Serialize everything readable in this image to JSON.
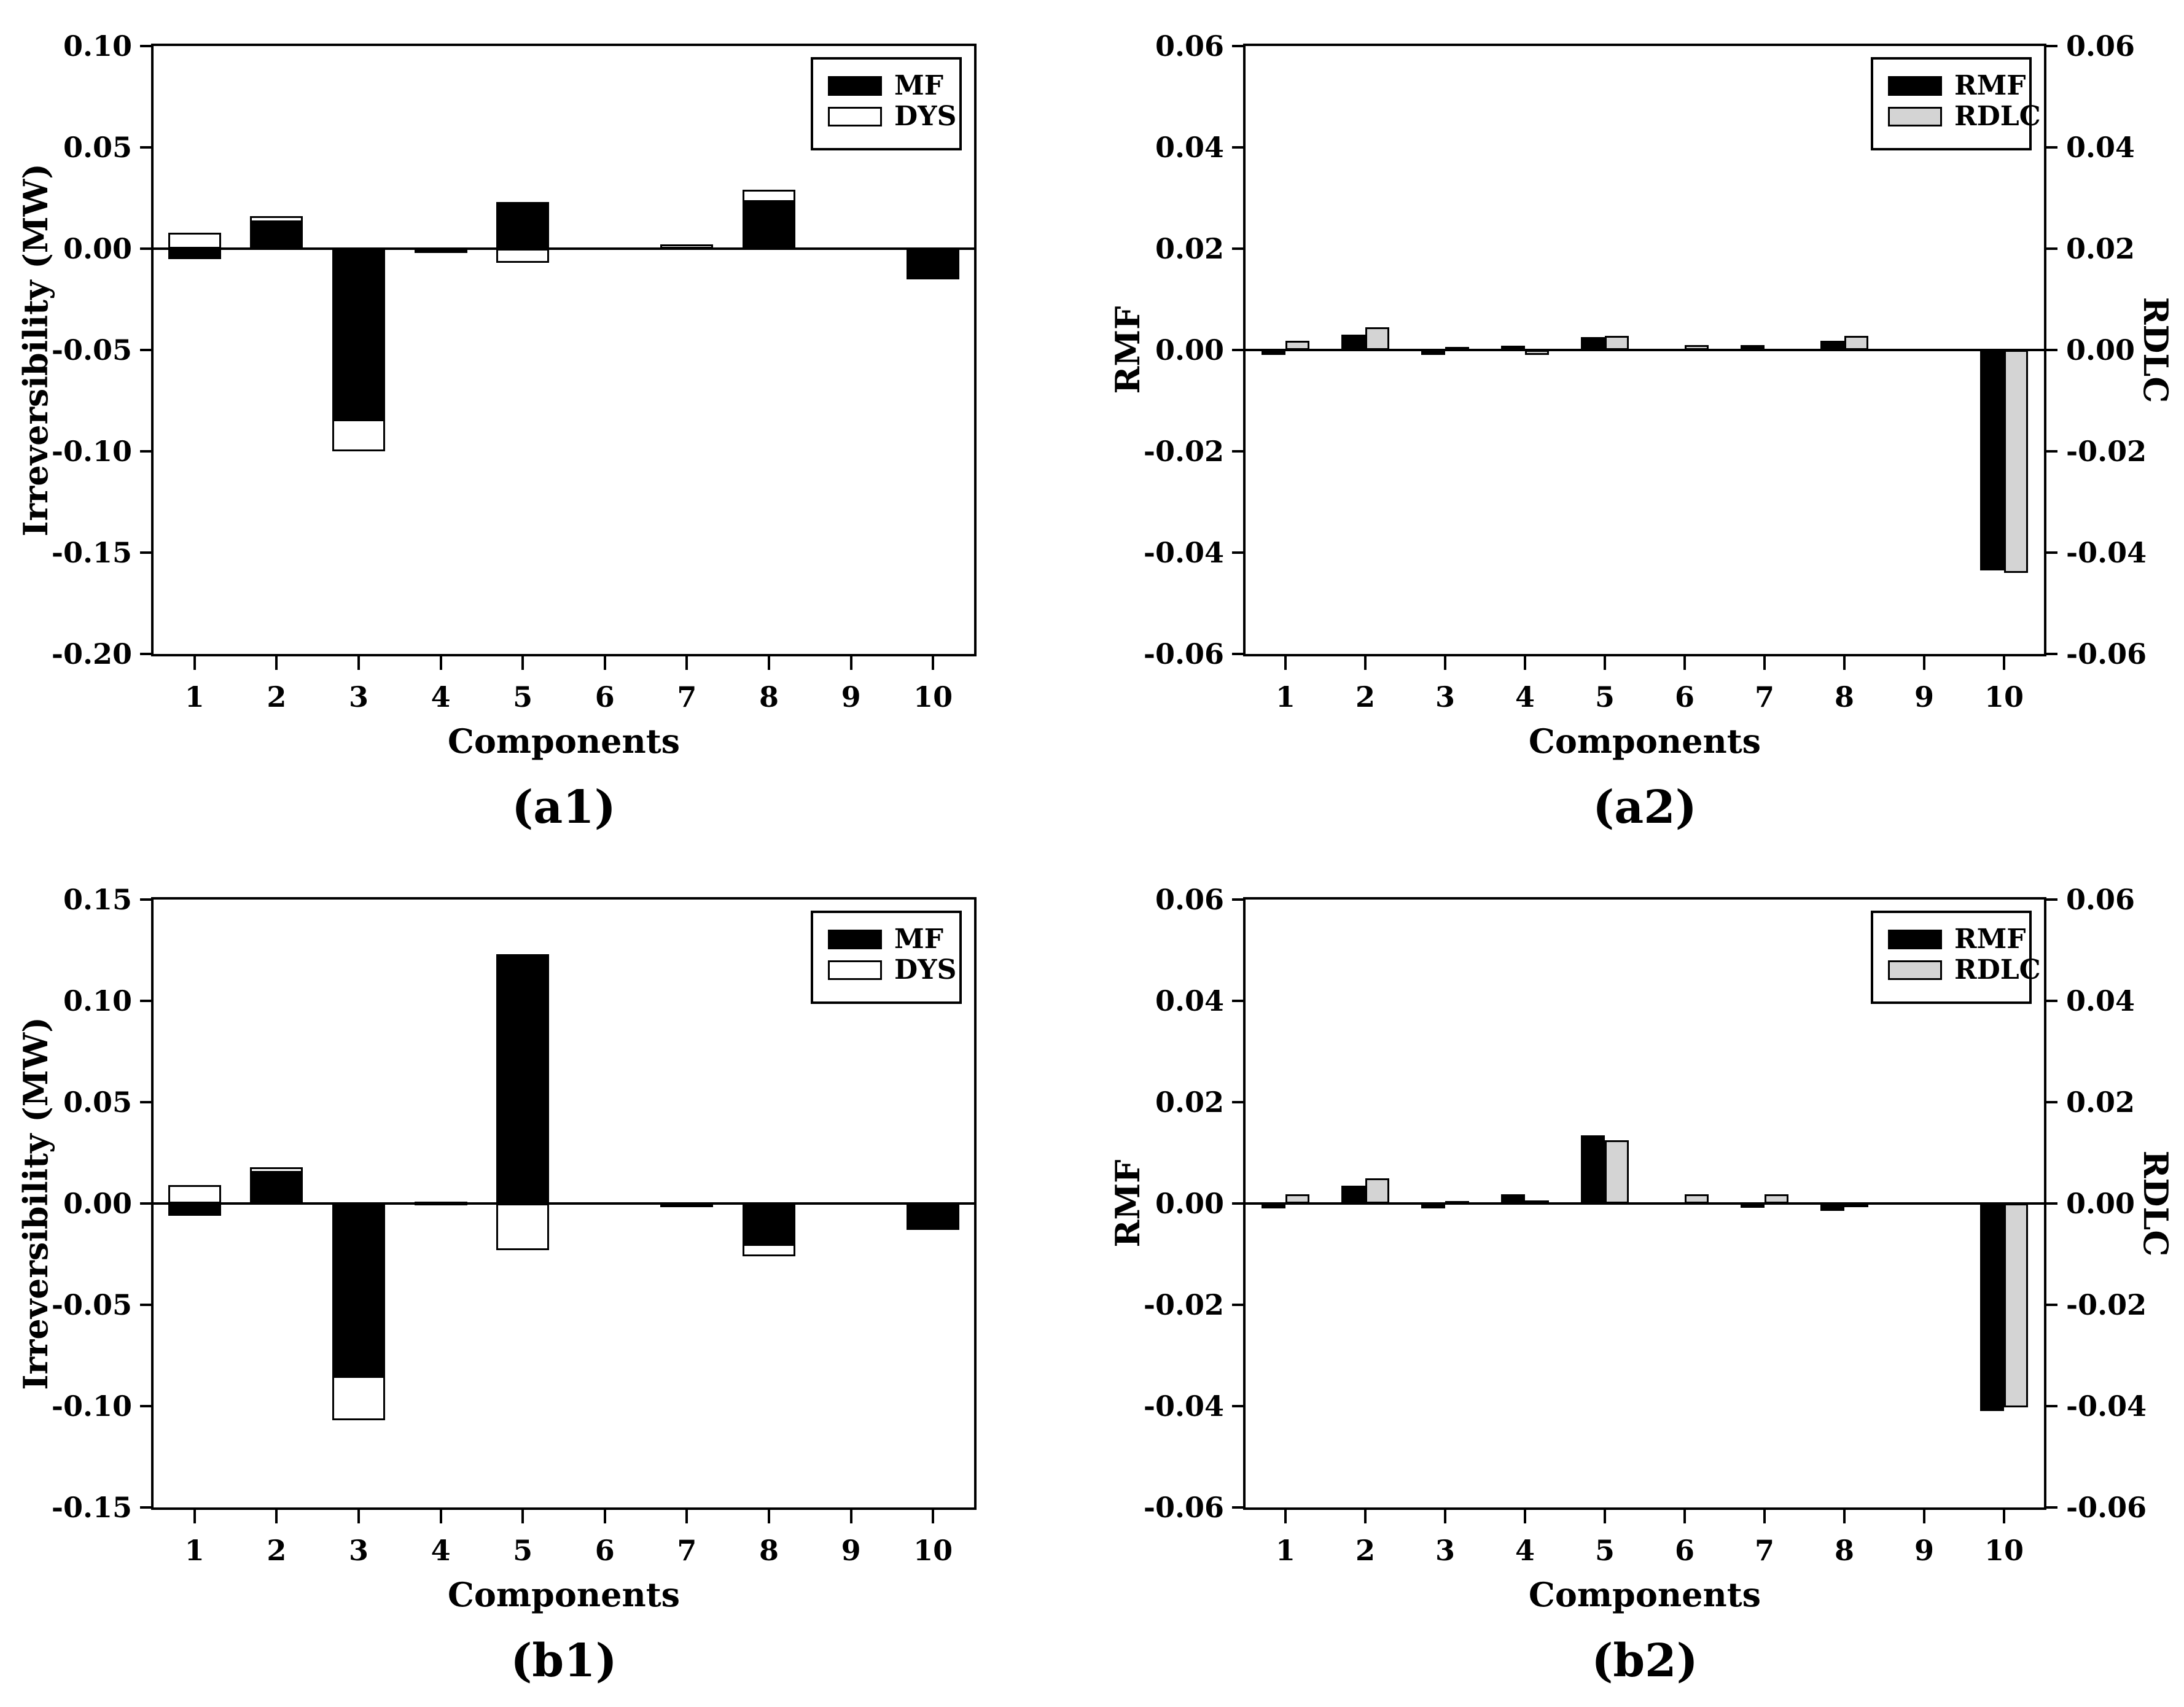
{
  "figure": {
    "background": "#ffffff",
    "caption_labels": [
      "(a1)",
      "(a2)",
      "(b1)",
      "(b2)"
    ]
  },
  "colors": {
    "black": "#000000",
    "white": "#ffffff",
    "light_gray": "#d4d4d4",
    "axis": "#000000",
    "background": "#ffffff"
  },
  "chart_data": [
    {
      "id": "a1",
      "type": "bar",
      "bar_mode": "overlap",
      "caption": "(a1)",
      "xlabel": "Components",
      "ylabel": "Irreversibility (MW)",
      "categories": [
        "1",
        "2",
        "3",
        "4",
        "5",
        "6",
        "7",
        "8",
        "9",
        "10"
      ],
      "ylim": [
        -0.2,
        0.1
      ],
      "ytick_step": 0.05,
      "ytick_labels": [
        "0.10",
        "0.05",
        "0.00",
        "-0.05",
        "-0.10",
        "-0.15",
        "-0.20"
      ],
      "grid": false,
      "legend_position": "top-right",
      "series": [
        {
          "name": "MF",
          "color": "#000000",
          "values": [
            -0.005,
            0.014,
            -0.085,
            -0.001,
            0.023,
            0.0,
            0.0005,
            0.024,
            0.0,
            -0.015
          ]
        },
        {
          "name": "DYS",
          "color": "#ffffff",
          "values": [
            0.008,
            0.016,
            -0.1,
            -0.002,
            -0.007,
            0.0,
            0.002,
            0.029,
            0.0,
            -0.001
          ]
        }
      ]
    },
    {
      "id": "a2",
      "type": "bar",
      "bar_mode": "group",
      "caption": "(a2)",
      "xlabel": "Components",
      "ylabel": "RMF",
      "ylabel_right": "RDLC",
      "categories": [
        "1",
        "2",
        "3",
        "4",
        "5",
        "6",
        "7",
        "8",
        "9",
        "10"
      ],
      "ylim": [
        -0.06,
        0.06
      ],
      "ytick_step": 0.02,
      "ytick_labels": [
        "0.06",
        "0.04",
        "0.02",
        "0.00",
        "-0.02",
        "-0.04",
        "-0.06"
      ],
      "grid": false,
      "legend_position": "top-right",
      "series": [
        {
          "name": "RMF",
          "color": "#000000",
          "values": [
            -0.001,
            0.003,
            -0.001,
            0.0008,
            0.0025,
            0.0002,
            0.001,
            0.0018,
            0.0,
            -0.0435
          ]
        },
        {
          "name": "RDLC",
          "color": "#d4d4d4",
          "values": [
            0.0018,
            0.0045,
            0.0006,
            -0.001,
            0.0028,
            0.001,
            0.0002,
            0.0028,
            0.0,
            -0.044
          ]
        }
      ]
    },
    {
      "id": "b1",
      "type": "bar",
      "bar_mode": "overlap",
      "caption": "(b1)",
      "xlabel": "Components",
      "ylabel": "Irreversibility (MW)",
      "categories": [
        "1",
        "2",
        "3",
        "4",
        "5",
        "6",
        "7",
        "8",
        "9",
        "10"
      ],
      "ylim": [
        -0.15,
        0.15
      ],
      "ytick_step": 0.05,
      "ytick_labels": [
        "0.15",
        "0.10",
        "0.05",
        "0.00",
        "-0.05",
        "-0.10",
        "-0.15"
      ],
      "grid": false,
      "legend_position": "top-right",
      "series": [
        {
          "name": "MF",
          "color": "#000000",
          "values": [
            -0.006,
            0.016,
            -0.086,
            0.001,
            0.123,
            0.0,
            -0.001,
            -0.021,
            0.0,
            -0.013
          ]
        },
        {
          "name": "DYS",
          "color": "#ffffff",
          "values": [
            0.009,
            0.018,
            -0.107,
            0.001,
            -0.023,
            0.0,
            -0.0005,
            -0.026,
            0.0,
            -0.001
          ]
        }
      ]
    },
    {
      "id": "b2",
      "type": "bar",
      "bar_mode": "group",
      "caption": "(b2)",
      "xlabel": "Components",
      "ylabel": "RMF",
      "ylabel_right": "RDLC",
      "categories": [
        "1",
        "2",
        "3",
        "4",
        "5",
        "6",
        "7",
        "8",
        "9",
        "10"
      ],
      "ylim": [
        -0.06,
        0.06
      ],
      "ytick_step": 0.02,
      "ytick_labels": [
        "0.06",
        "0.04",
        "0.02",
        "0.00",
        "-0.02",
        "-0.04",
        "-0.06"
      ],
      "grid": false,
      "legend_position": "top-right",
      "series": [
        {
          "name": "RMF",
          "color": "#000000",
          "values": [
            -0.001,
            0.0035,
            -0.001,
            0.0018,
            0.0135,
            0.0001,
            -0.0008,
            -0.0015,
            0.0,
            -0.041
          ]
        },
        {
          "name": "RDLC",
          "color": "#d4d4d4",
          "values": [
            0.0018,
            0.005,
            0.0005,
            0.0006,
            0.0125,
            0.0018,
            0.0018,
            -0.0004,
            0.0,
            -0.0402
          ]
        }
      ]
    }
  ]
}
